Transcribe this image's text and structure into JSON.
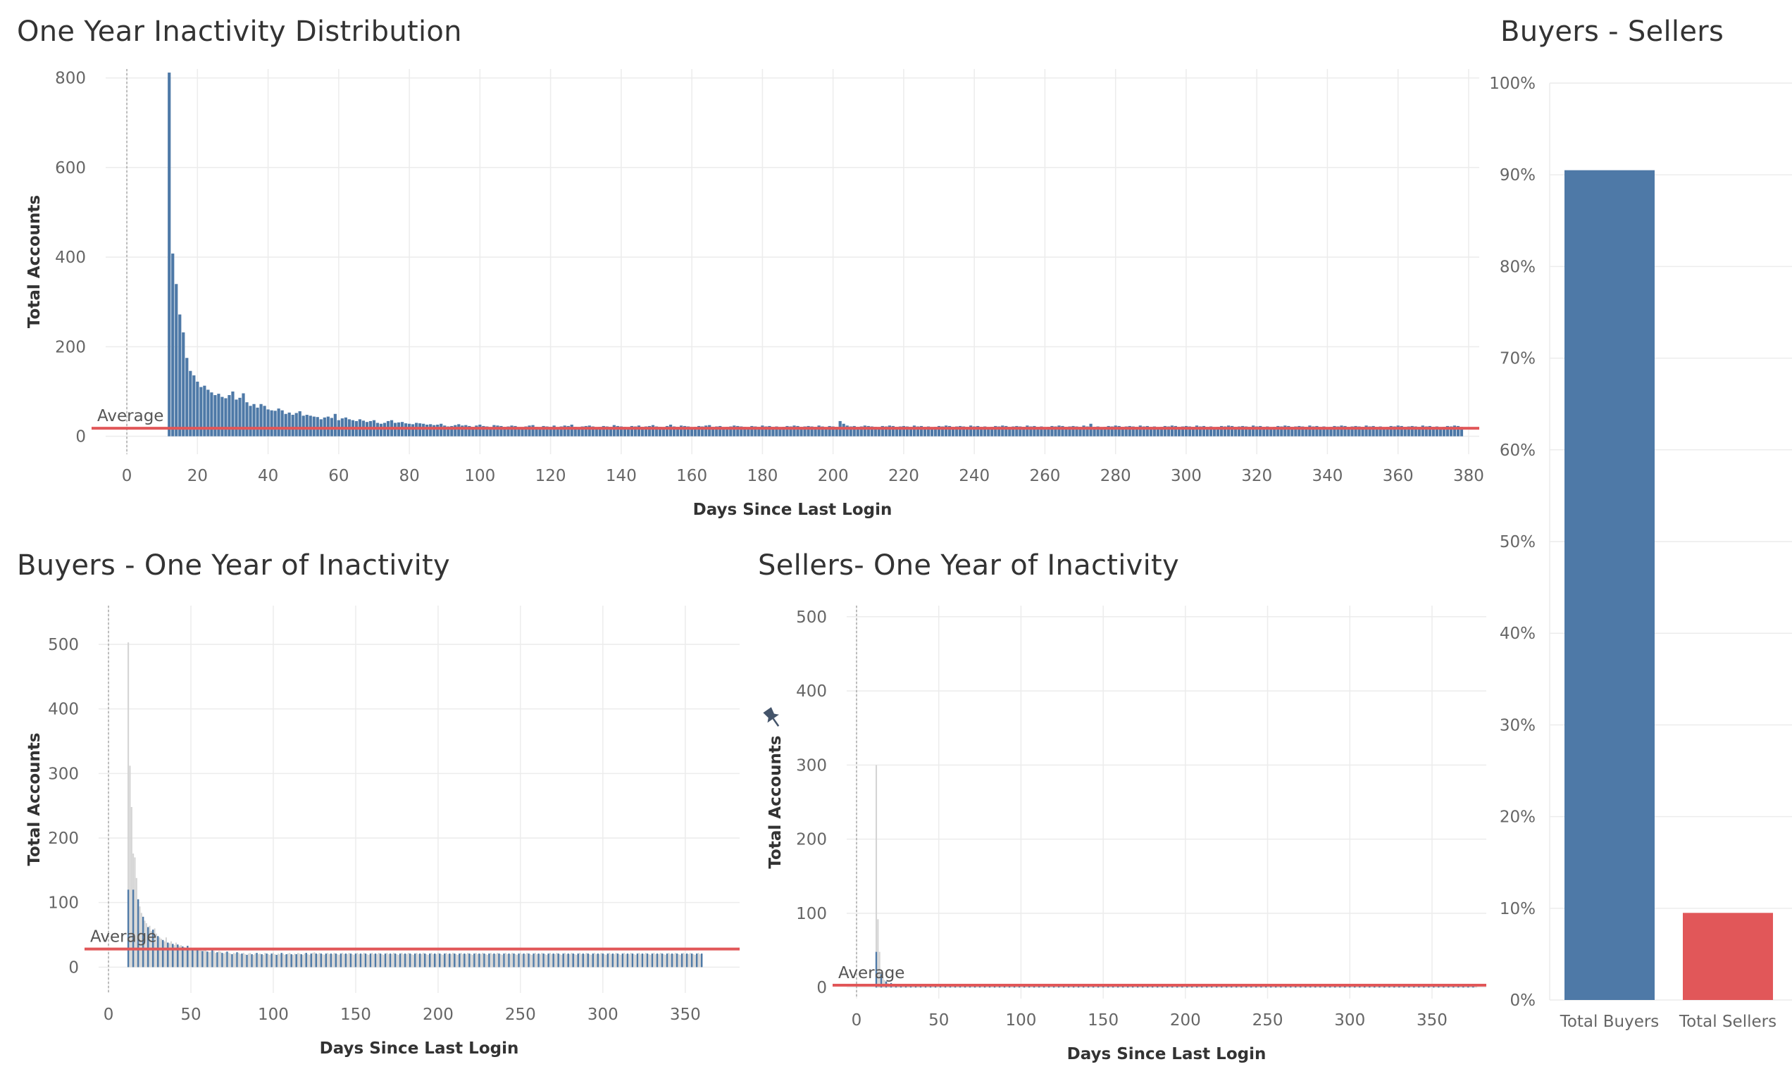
{
  "titles": {
    "overall": "One Year Inactivity Distribution",
    "buyers": "Buyers - One Year of Inactivity",
    "sellers": "Sellers- One Year of Inactivity",
    "split": "Buyers - Sellers"
  },
  "colors": {
    "bar": "#4e79a7",
    "average_line": "#e15759",
    "seller_bar": "#e15759",
    "ghost_bar": "#d4d4d4",
    "grid": "#ececec"
  },
  "chart_data": [
    {
      "id": "overall",
      "type": "bar",
      "title": "One Year Inactivity Distribution",
      "xlabel": "Days Since Last Login",
      "ylabel": "Total Accounts",
      "xlim": [
        -6,
        383
      ],
      "ylim": [
        -40,
        820
      ],
      "xticks": [
        0,
        20,
        40,
        60,
        80,
        100,
        120,
        140,
        160,
        180,
        200,
        220,
        240,
        260,
        280,
        300,
        320,
        340,
        360,
        380
      ],
      "yticks": [
        0,
        200,
        400,
        600,
        800
      ],
      "reference_line": {
        "label": "Average",
        "value": 18
      },
      "x_start": 12,
      "values": [
        812,
        408,
        340,
        272,
        232,
        175,
        146,
        136,
        122,
        110,
        113,
        104,
        98,
        92,
        95,
        88,
        85,
        92,
        100,
        82,
        86,
        96,
        76,
        68,
        72,
        64,
        72,
        68,
        60,
        58,
        57,
        62,
        58,
        50,
        53,
        48,
        52,
        56,
        46,
        48,
        46,
        44,
        43,
        38,
        42,
        44,
        41,
        50,
        36,
        40,
        42,
        38,
        36,
        34,
        38,
        35,
        32,
        34,
        36,
        30,
        28,
        30,
        34,
        36,
        30,
        31,
        32,
        29,
        28,
        27,
        30,
        29,
        28,
        26,
        27,
        25,
        26,
        28,
        24,
        22,
        23,
        25,
        27,
        24,
        25,
        23,
        21,
        24,
        26,
        23,
        22,
        20,
        25,
        24,
        23,
        21,
        22,
        24,
        23,
        20,
        19,
        22,
        24,
        25,
        21,
        20,
        23,
        22,
        21,
        24,
        20,
        22,
        24,
        23,
        26,
        21,
        20,
        22,
        23,
        24,
        22,
        20,
        21,
        23,
        22,
        21,
        25,
        23,
        22,
        21,
        20,
        23,
        22,
        24,
        21,
        22,
        23,
        25,
        22,
        21,
        20,
        23,
        26,
        22,
        21,
        24,
        23,
        22,
        20,
        21,
        23,
        22,
        24,
        25,
        21,
        22,
        23,
        20,
        21,
        22,
        24,
        23,
        22,
        21,
        20,
        23,
        22,
        21,
        24,
        22,
        23,
        21,
        22,
        20,
        21,
        23,
        22,
        24,
        23,
        21,
        22,
        23,
        22,
        21,
        24,
        22,
        20,
        23,
        22,
        21,
        34,
        28,
        24,
        22,
        23,
        21,
        22,
        24,
        23,
        22,
        21,
        20,
        23,
        22,
        24,
        23,
        21,
        22,
        23,
        22,
        21,
        24,
        22,
        23,
        21,
        22,
        20,
        21,
        23,
        22,
        24,
        23,
        21,
        22,
        23,
        22,
        21,
        24,
        22,
        23,
        21,
        22,
        20,
        21,
        23,
        22,
        24,
        23,
        21,
        22,
        23,
        22,
        21,
        24,
        22,
        23,
        21,
        22,
        20,
        21,
        23,
        22,
        24,
        23,
        21,
        22,
        23,
        22,
        21,
        24,
        22,
        28,
        21,
        22,
        20,
        21,
        23,
        22,
        24,
        23,
        21,
        22,
        23,
        22,
        21,
        24,
        22,
        23,
        21,
        22,
        20,
        21,
        23,
        22,
        24,
        23,
        21,
        22,
        23,
        22,
        21,
        24,
        22,
        23,
        21,
        22,
        20,
        21,
        23,
        22,
        24,
        23,
        21,
        22,
        23,
        22,
        21,
        24,
        22,
        23,
        21,
        22,
        20,
        21,
        23,
        22,
        24,
        23,
        21,
        22,
        23,
        22,
        21,
        24,
        22,
        23,
        21,
        22,
        20,
        21,
        23,
        22,
        24,
        23,
        21,
        22,
        23,
        22,
        21,
        24,
        22,
        23,
        21,
        22,
        20,
        21,
        23,
        22,
        24,
        23,
        21,
        22,
        23,
        22,
        21,
        24,
        22,
        23,
        21,
        22,
        20,
        21,
        23,
        22,
        24,
        23,
        21
      ]
    },
    {
      "id": "buyers",
      "type": "bar",
      "title": "Buyers - One Year of Inactivity",
      "xlabel": "Days Since Last Login",
      "ylabel": "Total Accounts",
      "xlim": [
        -6,
        383
      ],
      "ylim": [
        -40,
        560
      ],
      "xticks": [
        0,
        50,
        100,
        150,
        200,
        250,
        300,
        350
      ],
      "yticks": [
        0,
        100,
        200,
        300,
        400,
        500
      ],
      "reference_line": {
        "label": "Average",
        "value": 28
      },
      "x_start": 12,
      "values": [
        503,
        312,
        248,
        176,
        170,
        138,
        105,
        94,
        84,
        78,
        72,
        68,
        62,
        64,
        56,
        58,
        60,
        52,
        48,
        46,
        44,
        42,
        40,
        46,
        38,
        37,
        40,
        36,
        34,
        38,
        35,
        33,
        34,
        32,
        31,
        30,
        33,
        29,
        30,
        28,
        27,
        29,
        28,
        26,
        27,
        25,
        26,
        28,
        24,
        23,
        24,
        26,
        25,
        22,
        23,
        25,
        24,
        22,
        21,
        23,
        24,
        22,
        21,
        20,
        22,
        21,
        23,
        22,
        20,
        21,
        22,
        20,
        19,
        21,
        22,
        20,
        19,
        21,
        22,
        20,
        21,
        20,
        19,
        22,
        21,
        20,
        19,
        21,
        22,
        20,
        19,
        21,
        20,
        22,
        21,
        19,
        20,
        21,
        22,
        20,
        19,
        21,
        20,
        22,
        21,
        20,
        19,
        21,
        22,
        20,
        19,
        21,
        22,
        23,
        21,
        20,
        22,
        21,
        20,
        19,
        21,
        22,
        20,
        21,
        20,
        22,
        21,
        20,
        19,
        21,
        22,
        20,
        21,
        20,
        22,
        21,
        20,
        19,
        21,
        22,
        20,
        21,
        20,
        22,
        21,
        20,
        19,
        21,
        22,
        20,
        21,
        20,
        22,
        21,
        20,
        19,
        21,
        22,
        20,
        21,
        20,
        22,
        21,
        20,
        19,
        21,
        22,
        20,
        21,
        20,
        22,
        21,
        20,
        19,
        21,
        22,
        20,
        21,
        20,
        22,
        21,
        20,
        19,
        21,
        22,
        20,
        21,
        20,
        22,
        21,
        20,
        19,
        21,
        22,
        20,
        21,
        20,
        22,
        21,
        20,
        19,
        21,
        22,
        20,
        21,
        20,
        22,
        21,
        20,
        19,
        21,
        22,
        20,
        21,
        20,
        22,
        21,
        20,
        19,
        21,
        22,
        20,
        21,
        20,
        22,
        21,
        20,
        19,
        21,
        22,
        20,
        21,
        20,
        22,
        21,
        20,
        19,
        21,
        22,
        20,
        21,
        20,
        22,
        21,
        20,
        19,
        21,
        22,
        20,
        21,
        20,
        22,
        21,
        20,
        19,
        21,
        22,
        20,
        21,
        20,
        22,
        21,
        20,
        19,
        21,
        22,
        20,
        21,
        20,
        22,
        21,
        20,
        19,
        21,
        22,
        20,
        21,
        20,
        22,
        21,
        20,
        19,
        21,
        22,
        20,
        21,
        20,
        22,
        21,
        20,
        19,
        21,
        22,
        20,
        21,
        20,
        22,
        21,
        20,
        19,
        21,
        22,
        20,
        21,
        20,
        22,
        21,
        20,
        19,
        21,
        22,
        20,
        21,
        20,
        22,
        21,
        20,
        19,
        21,
        22,
        20,
        21,
        20,
        22,
        21,
        20,
        19,
        21,
        22,
        20,
        21,
        20,
        22,
        21,
        20,
        19,
        21,
        22,
        20,
        21,
        20,
        22,
        21,
        20,
        19,
        21,
        22,
        20,
        21
      ]
    },
    {
      "id": "sellers",
      "type": "bar",
      "title": "Sellers- One Year of Inactivity",
      "xlabel": "Days Since Last Login",
      "ylabel": "Total Accounts",
      "xlim": [
        -6,
        383
      ],
      "ylim": [
        -15,
        515
      ],
      "xticks": [
        0,
        50,
        100,
        150,
        200,
        250,
        300,
        350
      ],
      "yticks": [
        0,
        100,
        200,
        300,
        400,
        500
      ],
      "reference_line": {
        "label": "Average",
        "value": 3
      },
      "x_start": 12,
      "values": [
        300,
        92,
        48,
        18,
        14,
        10,
        8,
        6,
        5,
        6,
        4,
        5,
        4,
        3,
        4,
        3,
        3,
        2,
        3,
        2,
        3,
        2,
        2,
        3,
        2,
        2,
        2,
        3,
        2,
        2,
        2,
        2,
        2,
        2,
        2,
        2,
        2,
        2,
        2,
        2,
        2,
        2,
        2,
        2,
        2,
        2,
        2,
        2,
        2,
        2,
        2,
        2,
        2,
        2,
        2,
        2,
        2,
        2,
        2,
        2,
        2,
        2,
        2,
        2,
        2,
        2,
        2,
        2,
        2,
        2,
        2,
        2,
        2,
        2,
        2,
        2,
        2,
        2,
        2,
        2,
        2,
        2,
        2,
        2,
        2,
        2,
        2,
        2,
        2,
        2,
        2,
        2,
        2,
        2,
        2,
        2,
        2,
        2,
        2,
        2,
        2,
        2,
        2,
        2,
        2,
        2,
        2,
        2,
        2,
        2,
        2,
        2,
        2,
        2,
        2,
        2,
        2,
        2,
        2,
        2,
        2,
        2,
        2,
        2,
        2,
        2,
        2,
        2,
        2,
        2,
        2,
        2,
        2,
        2,
        2,
        2,
        2,
        2,
        2,
        2,
        2,
        2,
        2,
        2,
        2,
        2,
        2,
        2,
        2,
        2,
        2,
        2,
        2,
        2,
        2,
        2,
        2,
        2,
        2,
        2,
        2,
        2,
        2,
        2,
        2,
        2,
        2,
        2,
        2,
        2,
        2,
        2,
        2,
        2,
        2,
        2,
        2,
        2,
        2,
        2,
        2,
        2,
        2,
        2,
        2,
        2,
        2,
        2,
        2,
        2,
        2,
        2,
        2,
        2,
        2,
        2,
        2,
        2,
        2,
        2,
        2,
        2,
        2,
        2,
        2,
        2,
        2,
        2,
        2,
        2,
        2,
        2,
        2,
        2,
        2,
        2,
        2,
        2,
        2,
        2,
        2,
        2,
        2,
        2,
        2,
        2,
        2,
        2,
        2,
        2,
        2,
        2,
        2,
        2,
        2,
        2,
        2,
        2,
        2,
        2,
        2,
        2,
        2,
        2,
        2,
        2,
        2,
        2,
        2,
        2,
        2,
        2,
        2,
        2,
        2,
        2,
        2,
        2,
        2,
        2,
        2,
        2,
        2,
        2,
        2,
        2,
        2,
        2,
        2,
        2,
        2,
        2,
        2,
        2,
        2,
        2,
        2,
        2,
        2,
        2,
        2,
        2,
        2,
        2,
        2,
        2,
        2,
        2,
        2,
        2,
        2,
        2,
        2,
        2,
        2,
        2,
        2,
        2,
        2,
        2,
        2,
        2,
        2,
        2,
        2,
        2,
        2,
        2,
        2,
        2,
        2,
        2,
        2,
        2,
        2,
        2,
        2,
        2,
        2,
        2,
        2,
        2,
        2,
        2,
        2,
        2,
        2,
        2,
        2,
        2,
        2,
        2,
        2,
        2,
        2,
        2,
        2,
        2,
        2,
        2,
        2,
        2,
        2,
        2,
        2,
        2,
        2,
        2,
        2,
        2,
        2,
        2,
        2,
        2,
        2,
        2,
        2,
        2,
        2,
        2,
        2,
        2,
        2,
        2,
        2,
        2
      ]
    },
    {
      "id": "split",
      "type": "bar",
      "title": "Buyers - Sellers",
      "categories": [
        "Total Buyers",
        "Total Sellers"
      ],
      "values": [
        0.905,
        0.095
      ],
      "ylim": [
        0,
        1.0
      ],
      "yticks": [
        "0%",
        "10%",
        "20%",
        "30%",
        "40%",
        "50%",
        "60%",
        "70%",
        "80%",
        "90%",
        "100%"
      ],
      "colors": [
        "#4e79a7",
        "#e15759"
      ]
    }
  ]
}
